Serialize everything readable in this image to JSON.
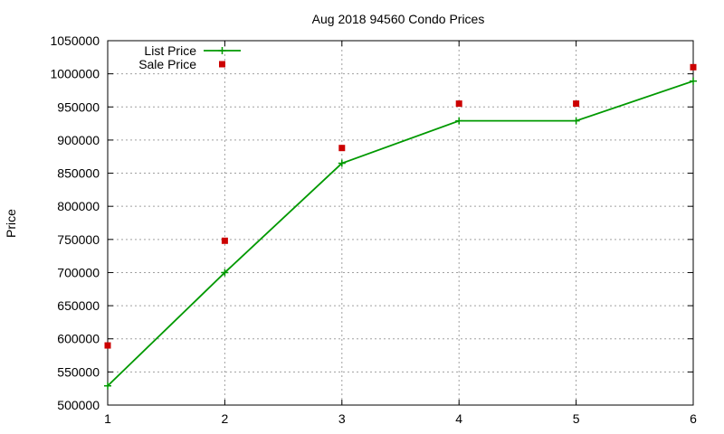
{
  "chart_data": {
    "type": "line",
    "title": "Aug 2018 94560 Condo Prices",
    "xlabel": "",
    "ylabel": "Price",
    "xlim": [
      1,
      6
    ],
    "ylim": [
      500000,
      1050000
    ],
    "x_ticks": [
      "1",
      "2",
      "3",
      "4",
      "5",
      "6"
    ],
    "y_ticks": [
      "500000",
      "550000",
      "600000",
      "650000",
      "700000",
      "750000",
      "800000",
      "850000",
      "900000",
      "950000",
      "1000000",
      "1050000"
    ],
    "grid": true,
    "legend_position": "top-left",
    "series": [
      {
        "name": "List Price",
        "style": "linespoints",
        "marker": "plus",
        "color": "#009900",
        "x": [
          1,
          2,
          3,
          4,
          5,
          6
        ],
        "values": [
          529000,
          700000,
          865000,
          929000,
          929000,
          989000
        ]
      },
      {
        "name": "Sale Price",
        "style": "points",
        "marker": "square",
        "color": "#cc0000",
        "x": [
          1,
          2,
          3,
          4,
          5,
          6
        ],
        "values": [
          590000,
          748000,
          888000,
          955000,
          955000,
          1010000
        ]
      }
    ]
  }
}
